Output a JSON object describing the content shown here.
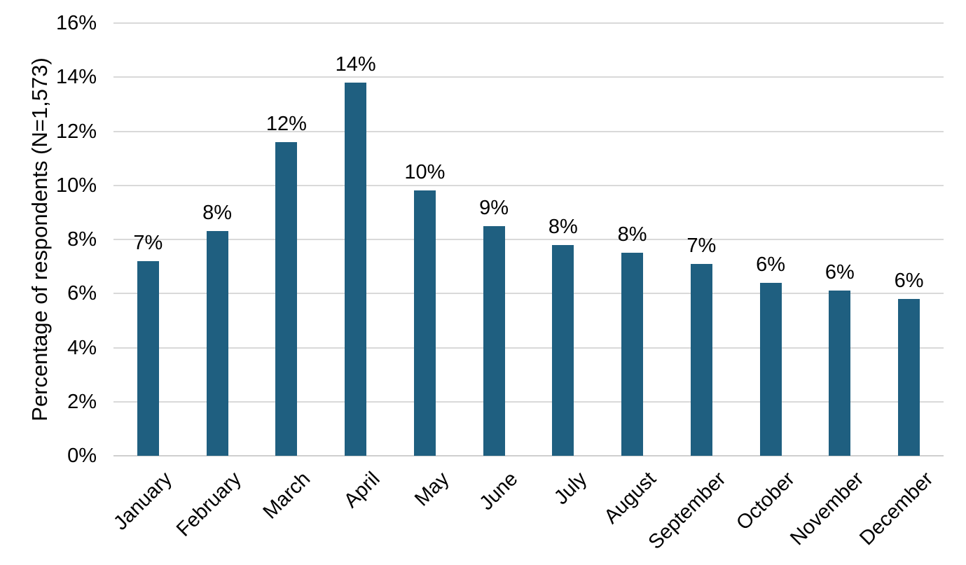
{
  "chart_data": {
    "type": "bar",
    "title": "",
    "xlabel": "",
    "ylabel": "Percentage of respondents (N=1,573)",
    "categories": [
      "January",
      "February",
      "March",
      "April",
      "May",
      "June",
      "July",
      "August",
      "September",
      "October",
      "November",
      "December"
    ],
    "values": [
      7.2,
      8.3,
      11.6,
      13.8,
      9.8,
      8.5,
      7.8,
      7.5,
      7.1,
      6.4,
      6.1,
      5.8
    ],
    "data_labels": [
      "7%",
      "8%",
      "12%",
      "14%",
      "10%",
      "9%",
      "8%",
      "8%",
      "7%",
      "6%",
      "6%",
      "6%"
    ],
    "ylim": [
      0,
      16
    ],
    "ytick_step": 2,
    "ytick_labels": [
      "0%",
      "2%",
      "4%",
      "6%",
      "8%",
      "10%",
      "12%",
      "14%",
      "16%"
    ],
    "grid": "horizontal-gridlines-on",
    "legend": "none",
    "x_label_rotation_deg": -45,
    "colors": {
      "bar": "#1F5F80",
      "gridline": "#D9D9D9",
      "axis_line": "#CFCFCF",
      "text": "#000000",
      "background": "#FFFFFF"
    }
  }
}
